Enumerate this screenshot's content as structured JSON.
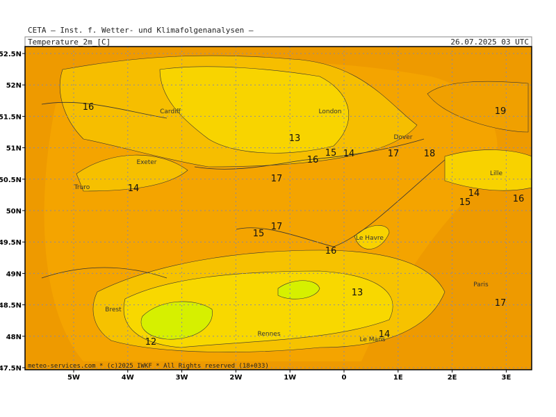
{
  "header": {
    "title": "CETA — Inst. f. Wetter- und Klimafolgenanalysen —",
    "variable": "Temperature_2m_[C]",
    "valid_time": "26.07.2025 03 UTC"
  },
  "axes": {
    "lat_labels": [
      "52.5N",
      "52N",
      "51.5N",
      "51N",
      "50.5N",
      "50N",
      "49.5N",
      "49N",
      "48.5N",
      "48N",
      "47.5N"
    ],
    "lon_labels": [
      "5W",
      "4W",
      "3W",
      "2W",
      "1W",
      "0",
      "1E",
      "2E",
      "3E"
    ]
  },
  "contour_labels": [
    16,
    13,
    15,
    14,
    16,
    17,
    17,
    18,
    19,
    14,
    14,
    15,
    16,
    17,
    15,
    16,
    13,
    17,
    12,
    14
  ],
  "places": [
    "Cardiff",
    "London",
    "Dover",
    "Exeter",
    "Truro",
    "Le Havre",
    "Lille",
    "Paris",
    "Brest",
    "Rennes",
    "Le Mans"
  ],
  "footer": "meteo-services.com * (c)2025 IWKF * All Rights reserved (18+033)"
}
